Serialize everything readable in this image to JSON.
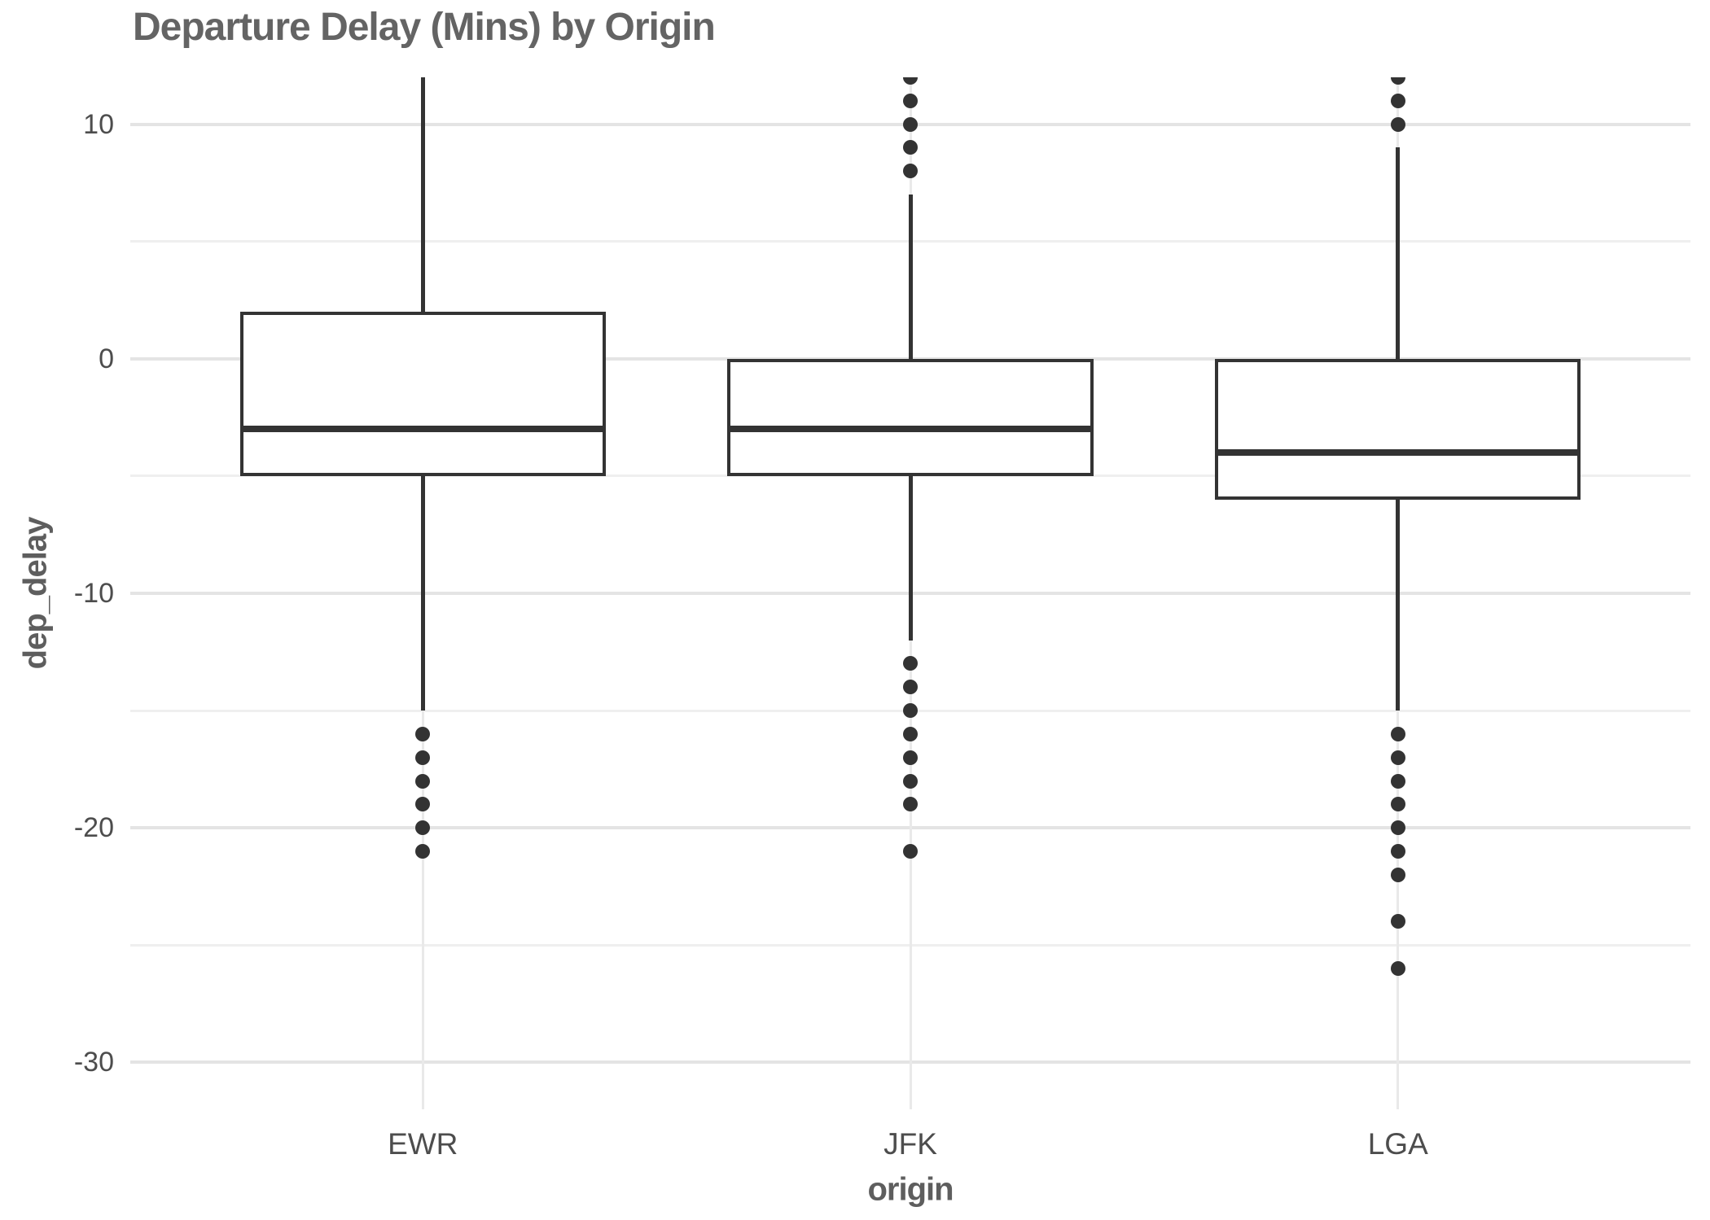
{
  "chart_data": {
    "type": "boxplot",
    "title": "Departure Delay (Mins) by Origin",
    "xlabel": "origin",
    "ylabel": "dep_delay",
    "categories": [
      "EWR",
      "JFK",
      "LGA"
    ],
    "y_ticks": [
      10,
      0,
      -10,
      -20,
      -30
    ],
    "y_minor_ticks": [
      5,
      -5,
      -15,
      -25
    ],
    "ylim": [
      -32,
      12
    ],
    "grid": "horizontal major+minor, vertical at category centers",
    "legend": "none",
    "series": [
      {
        "name": "EWR",
        "q1": -5,
        "median": -3,
        "q3": 2,
        "whisker_low": -15,
        "whisker_high": 12,
        "whisker_high_clipped": true,
        "outliers_low": [
          -16,
          -17,
          -18,
          -19,
          -20,
          -21
        ],
        "outliers_high": []
      },
      {
        "name": "JFK",
        "q1": -5,
        "median": -3,
        "q3": 0,
        "whisker_low": -12,
        "whisker_high": 7,
        "whisker_high_clipped": false,
        "outliers_low": [
          -13,
          -14,
          -15,
          -16,
          -17,
          -18,
          -19,
          -21
        ],
        "outliers_high": [
          8,
          9,
          10,
          11,
          12
        ]
      },
      {
        "name": "LGA",
        "q1": -6,
        "median": -4,
        "q3": 0,
        "whisker_low": -15,
        "whisker_high": 9,
        "whisker_high_clipped": false,
        "outliers_low": [
          -16,
          -17,
          -18,
          -19,
          -20,
          -21,
          -22,
          -24,
          -26
        ],
        "outliers_high": [
          10,
          11,
          12
        ]
      }
    ],
    "colors": {
      "box_stroke": "#333333",
      "box_fill": "#ffffff",
      "grid_major": "#e4e4e4",
      "grid_minor": "#efefef",
      "title_text": "#646464",
      "axis_title_text": "#5e5e5e",
      "tick_text": "#4d4d4d",
      "background": "#ffffff"
    }
  }
}
